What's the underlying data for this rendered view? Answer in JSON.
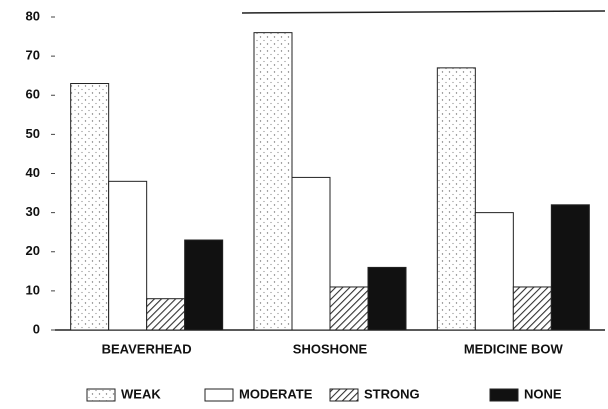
{
  "chart_data": {
    "type": "bar",
    "categories": [
      "BEAVERHEAD",
      "SHOSHONE",
      "MEDICINE BOW"
    ],
    "series": [
      {
        "name": "WEAK",
        "color": "#ffffff",
        "pattern": "stipple",
        "values": [
          63,
          76,
          67
        ]
      },
      {
        "name": "MODERATE",
        "color": "#ffffff",
        "pattern": "none",
        "values": [
          38,
          39,
          30
        ]
      },
      {
        "name": "STRONG",
        "color": "#ffffff",
        "pattern": "hatch",
        "values": [
          8,
          11,
          11
        ]
      },
      {
        "name": "NONE",
        "color": "#111111",
        "pattern": "none",
        "values": [
          23,
          16,
          32
        ]
      }
    ],
    "ylim": [
      0,
      80
    ],
    "yticks": [
      0,
      10,
      20,
      30,
      40,
      50,
      60,
      70,
      80
    ],
    "grid": false,
    "legend": "bottom"
  }
}
